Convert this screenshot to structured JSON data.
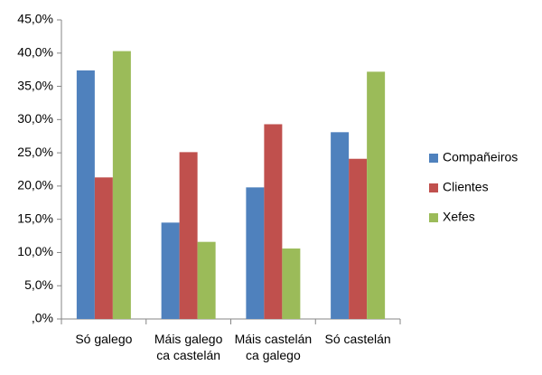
{
  "chart_data": {
    "type": "bar",
    "categories": [
      "Só galego",
      "Máis galego ca castelán",
      "Máis castelán ca galego",
      "Só castelán"
    ],
    "series": [
      {
        "name": "Compañeiros",
        "color": "#4f81bd",
        "values": [
          37.4,
          14.5,
          19.8,
          28.1
        ]
      },
      {
        "name": "Clientes",
        "color": "#c0504d",
        "values": [
          21.3,
          25.1,
          29.3,
          24.1
        ]
      },
      {
        "name": "Xefes",
        "color": "#9bbb59",
        "values": [
          40.3,
          11.6,
          10.6,
          37.2
        ]
      }
    ],
    "ylim": [
      0,
      45
    ],
    "yticks": [
      {
        "value": 0,
        "label": ",0%"
      },
      {
        "value": 5,
        "label": "5,0%"
      },
      {
        "value": 10,
        "label": "10,0%"
      },
      {
        "value": 15,
        "label": "15,0%"
      },
      {
        "value": 20,
        "label": "20,0%"
      },
      {
        "value": 25,
        "label": "25,0%"
      },
      {
        "value": 30,
        "label": "30,0%"
      },
      {
        "value": 35,
        "label": "35,0%"
      },
      {
        "value": 40,
        "label": "40,0%"
      },
      {
        "value": 45,
        "label": "45,0%"
      }
    ],
    "grid": false,
    "legend": "right"
  }
}
